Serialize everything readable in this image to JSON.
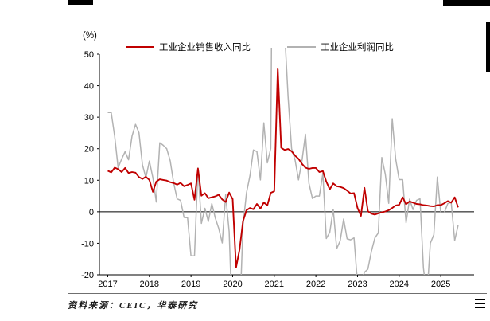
{
  "footer": {
    "source_text": "资料来源：CEIC，华泰研究"
  },
  "chart_data": {
    "type": "line",
    "title": "",
    "xlabel": "",
    "ylabel": "",
    "y_unit": "(%)",
    "ylim": [
      -20,
      50
    ],
    "yticks": [
      -20,
      -10,
      0,
      10,
      20,
      30,
      40,
      50
    ],
    "xticks": [
      2017,
      2018,
      2019,
      2020,
      2021,
      2022,
      2023,
      2024,
      2025
    ],
    "x_domain": [
      2016.8,
      2025.8
    ],
    "x_start": 2017.0,
    "x_step": 0.0833333,
    "grid": false,
    "legend_position": "top",
    "series": [
      {
        "name": "工业企业销售收入同比",
        "color": "#c00000",
        "values": [
          13.0,
          12.5,
          14.0,
          13.5,
          12.6,
          13.9,
          12.3,
          12.6,
          12.4,
          11.0,
          10.4,
          11.1,
          10.1,
          6.3,
          9.6,
          10.3,
          10.1,
          9.9,
          9.4,
          9.1,
          8.6,
          9.2,
          8.1,
          8.5,
          9.0,
          3.8,
          13.7,
          5.1,
          5.9,
          4.3,
          4.6,
          4.9,
          5.4,
          3.9,
          3.1,
          6.1,
          4.0,
          -17.7,
          -12.0,
          -3.0,
          0.5,
          1.2,
          0.8,
          2.5,
          1.0,
          3.0,
          2.0,
          6.0,
          6.5,
          45.5,
          20.3,
          19.6,
          19.9,
          19.2,
          17.8,
          16.8,
          15.2,
          14.0,
          13.6,
          13.9,
          13.9,
          12.6,
          12.9,
          9.6,
          7.1,
          9.0,
          8.1,
          7.9,
          7.5,
          6.7,
          5.8,
          5.9,
          1.2,
          -1.3,
          7.6,
          0.2,
          -0.6,
          -0.9,
          -0.5,
          -0.2,
          0.1,
          0.5,
          1.2,
          2.0,
          2.2,
          4.6,
          2.4,
          3.3,
          2.9,
          2.5,
          2.4,
          2.1,
          2.0,
          1.8,
          1.7,
          2.1,
          2.1,
          2.7,
          3.4,
          2.9,
          4.6,
          1.4
        ]
      },
      {
        "name": "工业企业利润同比",
        "color": "#b2b2b2",
        "values": [
          31.5,
          31.5,
          23.9,
          14.0,
          16.7,
          19.1,
          16.5,
          24.0,
          27.7,
          25.1,
          14.9,
          10.8,
          16.1,
          10.8,
          3.1,
          21.9,
          21.1,
          20.0,
          16.2,
          9.2,
          4.1,
          3.6,
          -1.8,
          -1.9,
          -14.0,
          -14.0,
          13.9,
          -3.7,
          1.1,
          -3.1,
          2.6,
          -2.0,
          -5.3,
          -9.9,
          5.4,
          -6.3,
          -38.3,
          -38.3,
          -34.9,
          -4.3,
          6.0,
          11.5,
          19.6,
          19.1,
          10.1,
          28.2,
          15.5,
          20.1,
          178.9,
          178.9,
          92.3,
          57.0,
          36.4,
          20.0,
          16.4,
          10.1,
          16.3,
          24.6,
          9.0,
          4.2,
          5.0,
          5.0,
          12.2,
          -8.5,
          -6.5,
          0.8,
          -11.7,
          -9.2,
          -2.3,
          -8.6,
          -8.9,
          -8.3,
          -22.9,
          -22.9,
          -19.2,
          -18.2,
          -12.6,
          -8.3,
          -6.7,
          17.2,
          11.9,
          2.7,
          29.5,
          16.8,
          10.2,
          10.2,
          -3.5,
          4.0,
          0.7,
          3.6,
          4.1,
          -17.8,
          -27.1,
          -10.0,
          -7.3,
          11.0,
          -0.3,
          -0.3,
          2.6,
          3.0,
          -9.1,
          -4.3
        ]
      }
    ]
  }
}
